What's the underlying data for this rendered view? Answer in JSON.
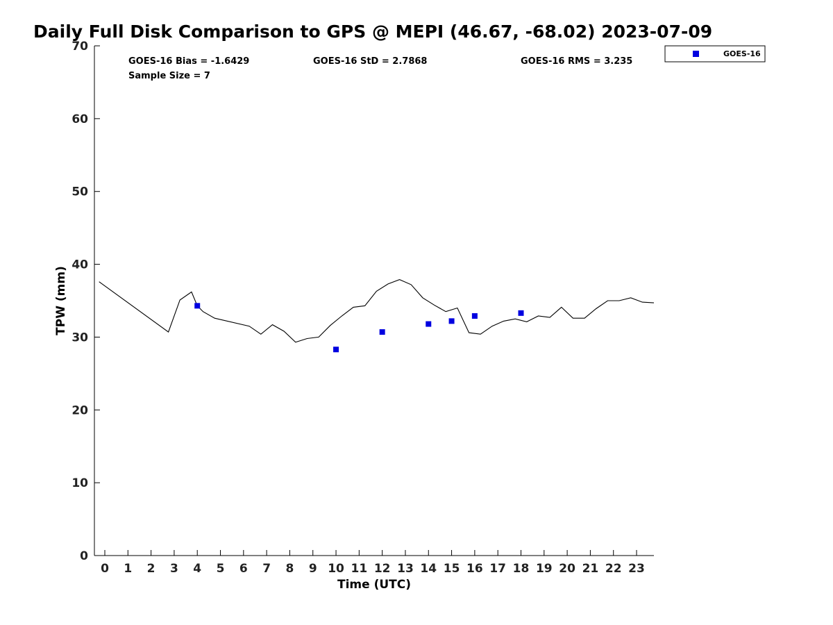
{
  "chart_data": {
    "type": "scatter",
    "title": "Daily Full Disk Comparison to GPS @ MEPI (46.67, -68.02) 2023-07-09",
    "xlabel": "Time (UTC)",
    "ylabel": "TPW (mm)",
    "xlim": [
      -0.45,
      23.75
    ],
    "ylim": [
      0,
      70
    ],
    "x_ticks": [
      0,
      1,
      2,
      3,
      4,
      5,
      6,
      7,
      8,
      9,
      10,
      11,
      12,
      13,
      14,
      15,
      16,
      17,
      18,
      19,
      20,
      21,
      22,
      23
    ],
    "y_ticks": [
      0,
      10,
      20,
      30,
      40,
      50,
      60,
      70
    ],
    "grid": false,
    "legend_position": "top-right",
    "series": [
      {
        "name": "GOES-16",
        "kind": "scatter",
        "marker": "square",
        "color": "#0000e0",
        "x": [
          4.0,
          10.0,
          12.0,
          14.0,
          15.0,
          16.0,
          18.0
        ],
        "y": [
          34.3,
          28.3,
          30.7,
          31.8,
          32.2,
          32.9,
          33.3
        ]
      },
      {
        "kind": "line",
        "color": "#000000",
        "x": [
          -0.25,
          2.75,
          3.25,
          3.75,
          4.0,
          4.25,
          4.75,
          6.25,
          6.75,
          7.25,
          7.75,
          8.25,
          8.75,
          9.25,
          9.75,
          10.25,
          10.75,
          11.25,
          11.75,
          12.25,
          12.75,
          13.25,
          13.75,
          14.25,
          14.75,
          15.25,
          15.75,
          16.25,
          16.75,
          17.25,
          17.75,
          18.25,
          18.75,
          19.25,
          19.75,
          20.25,
          20.75,
          21.25,
          21.75,
          22.25,
          22.75,
          23.25,
          23.75
        ],
        "y": [
          37.6,
          30.7,
          35.1,
          36.2,
          34.3,
          33.5,
          32.6,
          31.5,
          30.4,
          31.7,
          30.8,
          29.3,
          29.8,
          30.0,
          31.6,
          32.9,
          34.1,
          34.3,
          36.3,
          37.3,
          37.9,
          37.2,
          35.4,
          34.4,
          33.5,
          34.0,
          30.6,
          30.4,
          31.5,
          32.2,
          32.5,
          32.1,
          32.9,
          32.7,
          34.1,
          32.6,
          32.6,
          33.9,
          35.0,
          35.0,
          35.4,
          34.8,
          34.7
        ]
      }
    ],
    "annotations": {
      "bias": "GOES-16 Bias = -1.6429",
      "std": "GOES-16 StD = 2.7868",
      "rms": "GOES-16 RMS = 3.235",
      "sample": "Sample Size = 7"
    },
    "legend": [
      "GOES-16"
    ]
  }
}
